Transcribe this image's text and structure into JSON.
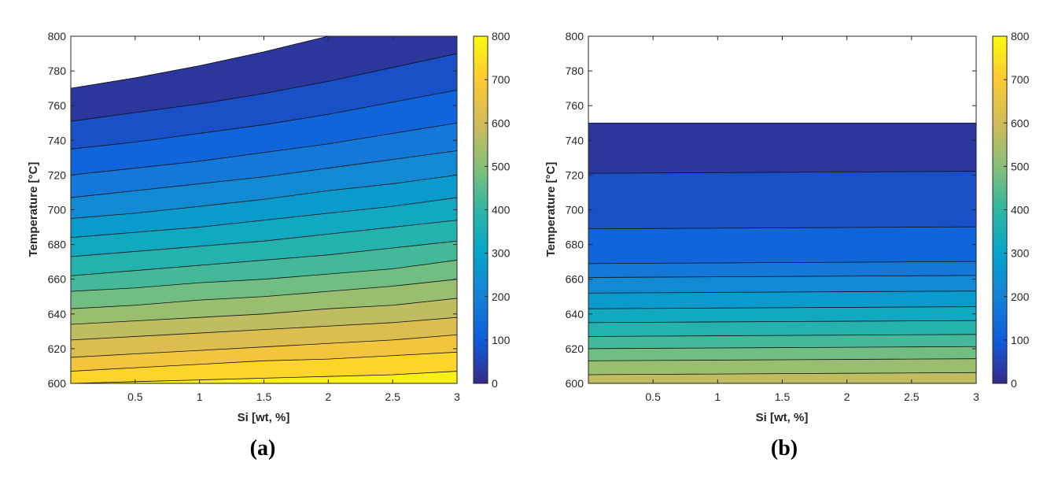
{
  "figure": {
    "panel_labels": [
      "(a)",
      "(b)"
    ]
  },
  "chart_data": [
    {
      "type": "heatmap",
      "subtype": "filled-contour",
      "panel": "(a)",
      "xlabel": "Si [wt, %]",
      "ylabel": "Temperature [°C]",
      "xlim": [
        0,
        3
      ],
      "ylim": [
        600,
        800
      ],
      "xticks": [
        0.5,
        1,
        1.5,
        2,
        2.5,
        3
      ],
      "yticks": [
        600,
        620,
        640,
        660,
        680,
        700,
        720,
        740,
        760,
        780,
        800
      ],
      "colorbar": {
        "colormap": "parula",
        "range": [
          0,
          800
        ],
        "ticks": [
          0,
          100,
          200,
          300,
          400,
          500,
          600,
          700,
          800
        ]
      },
      "contour_levels": [
        0,
        50,
        100,
        150,
        200,
        250,
        300,
        350,
        400,
        450,
        500,
        550,
        600,
        650,
        700,
        750,
        800
      ],
      "contour_lines": {
        "x": [
          0,
          0.5,
          1,
          1.5,
          2,
          2.5,
          3
        ],
        "levels": [
          {
            "level": 750,
            "y": [
              600,
              601,
              602,
              603,
              604,
              605,
              607
            ]
          },
          {
            "level": 700,
            "y": [
              607,
              609,
              611,
              613,
              614,
              616,
              618
            ]
          },
          {
            "level": 650,
            "y": [
              615,
              617,
              619,
              621,
              623,
              625,
              628
            ]
          },
          {
            "level": 600,
            "y": [
              625,
              627,
              629,
              631,
              633,
              635,
              638
            ]
          },
          {
            "level": 550,
            "y": [
              634,
              636,
              638,
              640,
              643,
              645,
              649
            ]
          },
          {
            "level": 500,
            "y": [
              643,
              645,
              648,
              650,
              653,
              656,
              660
            ]
          },
          {
            "level": 450,
            "y": [
              653,
              655,
              658,
              660,
              663,
              666,
              671
            ]
          },
          {
            "level": 400,
            "y": [
              662,
              665,
              668,
              671,
              674,
              678,
              682
            ]
          },
          {
            "level": 350,
            "y": [
              673,
              676,
              679,
              682,
              686,
              690,
              694
            ]
          },
          {
            "level": 300,
            "y": [
              684,
              687,
              690,
              694,
              698,
              702,
              707
            ]
          },
          {
            "level": 250,
            "y": [
              695,
              698,
              702,
              706,
              711,
              715,
              720
            ]
          },
          {
            "level": 200,
            "y": [
              707,
              711,
              715,
              719,
              724,
              729,
              734
            ]
          },
          {
            "level": 150,
            "y": [
              720,
              724,
              728,
              733,
              738,
              744,
              750
            ]
          },
          {
            "level": 100,
            "y": [
              735,
              739,
              744,
              749,
              755,
              762,
              769
            ]
          },
          {
            "level": 50,
            "y": [
              751,
              756,
              761,
              767,
              774,
              782,
              790
            ]
          },
          {
            "level": 0,
            "y": [
              770,
              776,
              783,
              791,
              800,
              800,
              800
            ]
          }
        ]
      }
    },
    {
      "type": "heatmap",
      "subtype": "filled-contour",
      "panel": "(b)",
      "xlabel": "Si [wt, %]",
      "ylabel": "Temperature [°C]",
      "xlim": [
        0,
        3
      ],
      "ylim": [
        600,
        800
      ],
      "xticks": [
        0.5,
        1,
        1.5,
        2,
        2.5,
        3
      ],
      "yticks": [
        600,
        620,
        640,
        660,
        680,
        700,
        720,
        740,
        760,
        780,
        800
      ],
      "colorbar": {
        "colormap": "parula",
        "range": [
          0,
          800
        ],
        "ticks": [
          0,
          100,
          200,
          300,
          400,
          500,
          600,
          700,
          800
        ]
      },
      "contour_levels": [
        0,
        50,
        100,
        150,
        200,
        250,
        300,
        350,
        400,
        450,
        500,
        550
      ],
      "contour_lines": {
        "x": [
          0,
          0.5,
          1,
          1.5,
          2,
          2.5,
          3
        ],
        "levels": [
          {
            "level": 550,
            "y": [
              605,
              605.2,
              605.4,
              605.6,
              605.8,
              606,
              606.2
            ]
          },
          {
            "level": 500,
            "y": [
              613,
              613.2,
              613.4,
              613.6,
              613.8,
              614,
              614.2
            ]
          },
          {
            "level": 450,
            "y": [
              620,
              620.2,
              620.4,
              620.6,
              620.8,
              621,
              621.2
            ]
          },
          {
            "level": 400,
            "y": [
              627,
              627.2,
              627.4,
              627.6,
              627.8,
              628,
              628.2
            ]
          },
          {
            "level": 350,
            "y": [
              635,
              635.2,
              635.4,
              635.6,
              635.8,
              636,
              636.2
            ]
          },
          {
            "level": 300,
            "y": [
              643,
              643.2,
              643.4,
              643.6,
              643.8,
              644,
              644.2
            ]
          },
          {
            "level": 250,
            "y": [
              652,
              652.2,
              652.4,
              652.6,
              652.8,
              653,
              653.2
            ]
          },
          {
            "level": 200,
            "y": [
              661,
              661.2,
              661.4,
              661.6,
              661.8,
              662,
              662.2
            ]
          },
          {
            "level": 150,
            "y": [
              669,
              669.2,
              669.4,
              669.6,
              669.8,
              670,
              670.2
            ]
          },
          {
            "level": 100,
            "y": [
              689,
              689.2,
              689.4,
              689.6,
              689.8,
              690,
              690.2
            ]
          },
          {
            "level": 50,
            "y": [
              721,
              721.2,
              721.4,
              721.6,
              721.8,
              722,
              722.2
            ]
          },
          {
            "level": 0,
            "y": [
              750,
              750,
              750,
              750,
              750,
              750,
              750
            ]
          }
        ]
      }
    }
  ]
}
